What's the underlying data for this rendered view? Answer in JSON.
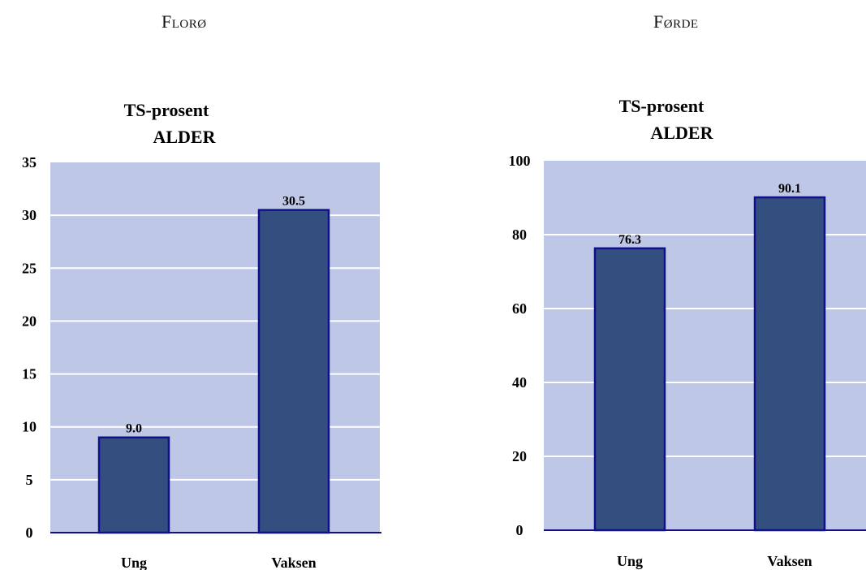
{
  "headings": {
    "left": "Florø",
    "right": "Førde"
  },
  "colors": {
    "plot_bg": "#bfc7e6",
    "bar_fill": "#334f80",
    "bar_stroke": "#10108a",
    "grid": "#ffffff",
    "axis": "#10108a"
  },
  "chart_data": [
    {
      "type": "bar",
      "title": "TS-prosent",
      "subtitle": "ALDER",
      "categories": [
        "Ung",
        "Vaksen"
      ],
      "values": [
        9.0,
        30.5
      ],
      "value_labels": [
        "9.0",
        "30.5"
      ],
      "ylim": [
        0,
        35
      ],
      "yticks": [
        0,
        5,
        10,
        15,
        20,
        25,
        30,
        35
      ],
      "grid": true
    },
    {
      "type": "bar",
      "title": "TS-prosent",
      "subtitle": "ALDER",
      "categories": [
        "Ung",
        "Vaksen"
      ],
      "values": [
        76.3,
        90.1
      ],
      "value_labels": [
        "76.3",
        "90.1"
      ],
      "ylim": [
        0,
        100
      ],
      "yticks": [
        0,
        20,
        40,
        60,
        80,
        100
      ],
      "grid": true
    }
  ]
}
